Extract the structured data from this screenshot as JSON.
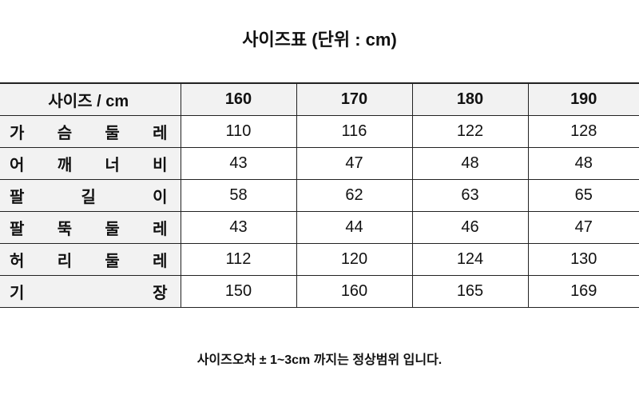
{
  "title": "사이즈표 (단위 : cm)",
  "table": {
    "corner": "사이즈 / cm",
    "sizes": [
      "160",
      "170",
      "180",
      "190"
    ],
    "rows": [
      {
        "label": "가 슴 둘 레",
        "values": [
          "110",
          "116",
          "122",
          "128"
        ]
      },
      {
        "label": "어 깨 너 비",
        "values": [
          "43",
          "47",
          "48",
          "48"
        ]
      },
      {
        "label": "팔 길 이",
        "values": [
          "58",
          "62",
          "63",
          "65"
        ]
      },
      {
        "label": "팔 뚝 둘 레",
        "values": [
          "43",
          "44",
          "46",
          "47"
        ]
      },
      {
        "label": "허 리 둘 레",
        "values": [
          "112",
          "120",
          "124",
          "130"
        ]
      },
      {
        "label": "기 장",
        "values": [
          "150",
          "160",
          "165",
          "169"
        ]
      }
    ]
  },
  "note": "사이즈오차 ± 1~3cm 까지는 정상범위 입니다."
}
